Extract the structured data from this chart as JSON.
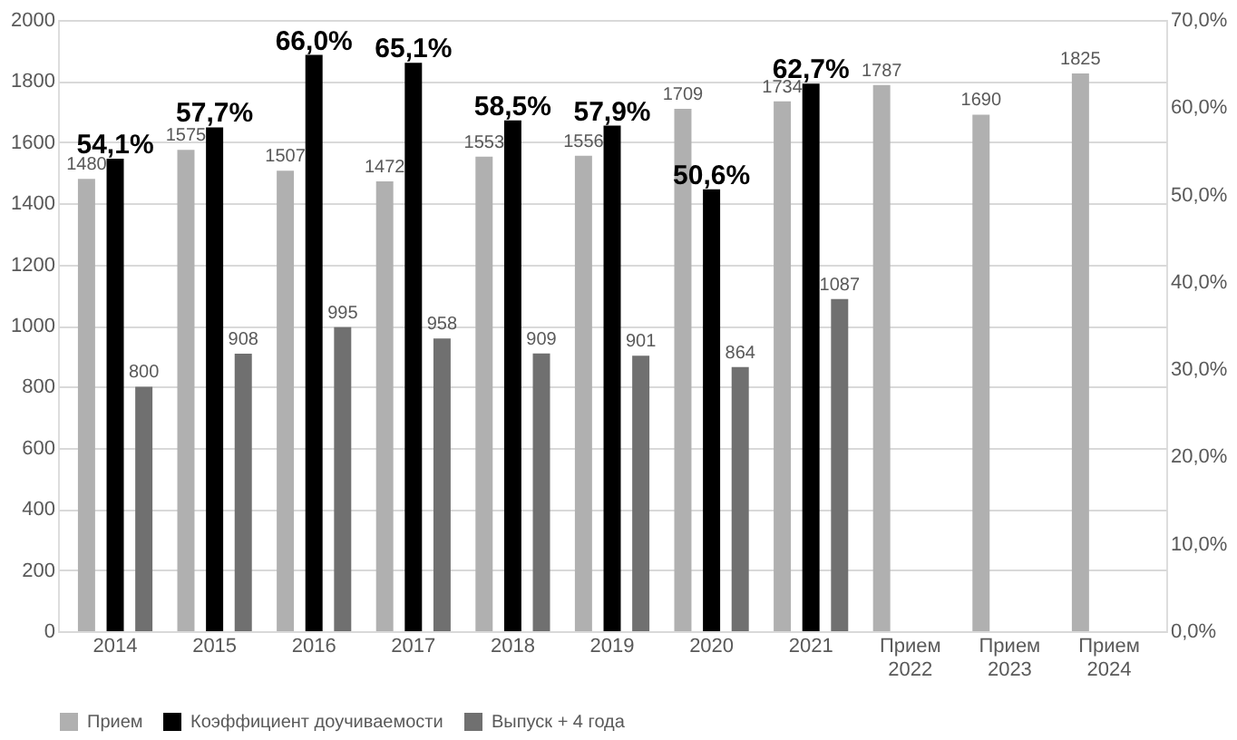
{
  "chart_data": {
    "type": "bar",
    "categories": [
      "2014",
      "2015",
      "2016",
      "2017",
      "2018",
      "2019",
      "2020",
      "2021",
      "Прием 2022",
      "Прием 2023",
      "Прием 2024"
    ],
    "series": [
      {
        "name": "Прием",
        "color": "#b0b0b0",
        "values": [
          1480,
          1575,
          1507,
          1472,
          1553,
          1556,
          1709,
          1734,
          1787,
          1690,
          1825
        ],
        "value_labels": [
          "1480",
          "1575",
          "1507",
          "1472",
          "1553",
          "1556",
          "1709",
          "1734",
          "1787",
          "1690",
          "1825"
        ]
      },
      {
        "name": "Коэффициент доучиваемости",
        "color": "#000000",
        "axis": "y2",
        "values": [
          54.1,
          57.7,
          66.0,
          65.1,
          58.5,
          57.9,
          50.6,
          62.7,
          null,
          null,
          null
        ],
        "value_labels": [
          "54,1%",
          "57,7%",
          "66,0%",
          "65,1%",
          "58,5%",
          "57,9%",
          "50,6%",
          "62,7%",
          null,
          null,
          null
        ]
      },
      {
        "name": "Выпуск + 4 года",
        "color": "#707070",
        "values": [
          800,
          908,
          995,
          958,
          909,
          901,
          864,
          1087,
          null,
          null,
          null
        ],
        "value_labels": [
          "800",
          "908",
          "995",
          "958",
          "909",
          "901",
          "864",
          "1087",
          null,
          null,
          null
        ]
      }
    ],
    "ylim": [
      0,
      2000
    ],
    "yticks": [
      0,
      200,
      400,
      600,
      800,
      1000,
      1200,
      1400,
      1600,
      1800,
      2000
    ],
    "y2lim": [
      0,
      70
    ],
    "y2ticks": [
      {
        "value": 0,
        "label": "0,0%"
      },
      {
        "value": 10,
        "label": "10,0%"
      },
      {
        "value": 20,
        "label": "20,0%"
      },
      {
        "value": 30,
        "label": "30,0%"
      },
      {
        "value": 40,
        "label": "40,0%"
      },
      {
        "value": 50,
        "label": "50,0%"
      },
      {
        "value": 60,
        "label": "60,0%"
      },
      {
        "value": 70,
        "label": "70,0%"
      }
    ],
    "grid": "y",
    "legend": "bottom"
  }
}
